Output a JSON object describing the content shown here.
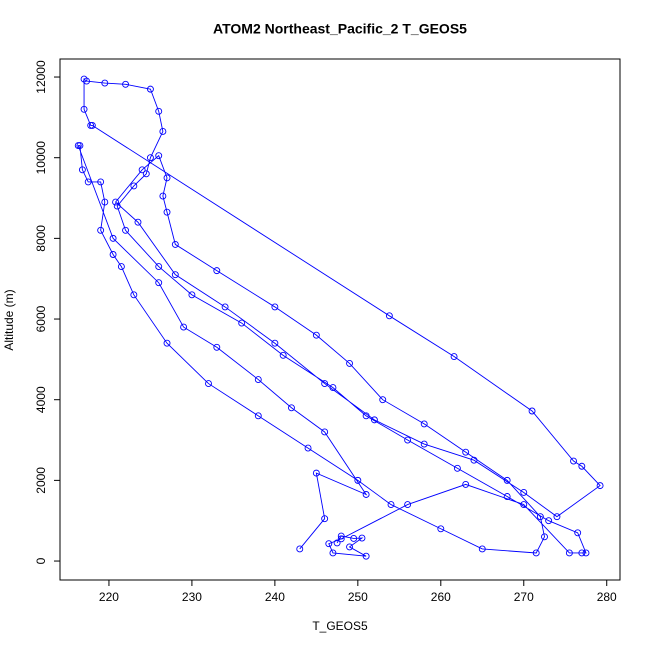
{
  "chart_data": {
    "type": "line",
    "markers": true,
    "title": "ATOM2 Northeast_Pacific_2 T_GEOS5",
    "x_label": "T_GEOS5",
    "y_label": "Altitude (m)",
    "color": "#0000ff",
    "xlim": [
      214.1,
      281.6
    ],
    "ylim": [
      -470,
      12447
    ],
    "xticks": [
      220,
      230,
      240,
      250,
      260,
      270,
      280
    ],
    "yticks": [
      0,
      2000,
      4000,
      6000,
      8000,
      10000,
      12000
    ],
    "x": [
      247.5,
      248,
      249.5,
      250.5,
      249,
      251,
      247,
      246.5,
      248,
      256,
      263,
      270,
      275.5,
      277,
      277.5,
      276.5,
      273,
      268,
      262,
      256,
      251,
      247,
      241,
      236,
      230,
      226,
      222,
      221,
      223,
      224.5,
      225,
      226.5,
      226,
      225,
      222,
      219.5,
      217.3,
      217,
      217,
      217.8,
      218,
      253.8,
      261.6,
      271,
      276,
      277,
      279.2,
      274,
      270,
      264,
      258,
      252,
      246,
      240,
      234,
      228,
      223.5,
      220.8,
      224,
      226,
      227,
      226.5,
      227,
      228,
      233,
      240,
      245,
      249,
      253,
      258,
      263,
      268,
      272,
      272.5,
      271.5,
      265,
      260,
      254,
      250,
      244,
      238,
      232,
      227,
      223,
      221.5,
      220.5,
      219,
      219.5,
      219,
      217.5,
      216.8,
      216.5,
      216.3,
      220.5,
      226,
      229,
      233,
      238,
      242,
      246,
      251,
      245,
      246,
      243
    ],
    "values": [
      450,
      620,
      560,
      570,
      350,
      120,
      200,
      430,
      550,
      1400,
      1900,
      1400,
      200,
      200,
      200,
      700,
      1000,
      1600,
      2300,
      3000,
      3600,
      4300,
      5100,
      5900,
      6600,
      7300,
      8200,
      8800,
      9300,
      9600,
      10000,
      10650,
      11150,
      11700,
      11820,
      11850,
      11900,
      11950,
      11200,
      10800,
      10800,
      6080,
      5070,
      3720,
      2480,
      2350,
      1870,
      1100,
      1700,
      2500,
      2900,
      3500,
      4400,
      5400,
      6300,
      7100,
      8400,
      8900,
      9700,
      10050,
      9500,
      9050,
      8650,
      7850,
      7200,
      6300,
      5600,
      4900,
      4000,
      3400,
      2700,
      2000,
      1100,
      600,
      200,
      300,
      800,
      1400,
      2000,
      2800,
      3600,
      4400,
      5400,
      6600,
      7300,
      7600,
      8200,
      8900,
      9400,
      9400,
      9700,
      10300,
      10300,
      8000,
      6900,
      5800,
      5300,
      4500,
      3800,
      3200,
      1650,
      2180,
      1050,
      300
    ]
  }
}
